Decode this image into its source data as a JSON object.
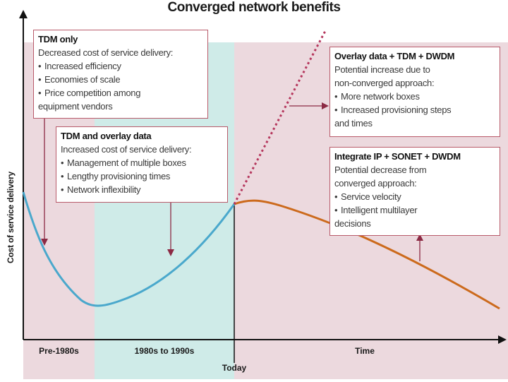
{
  "title": "Converged network benefits",
  "y_axis_label": "Cost of service delivery",
  "eras": {
    "pre": "Pre-1980s",
    "mid": "1980s to 1990s",
    "time": "Time",
    "today": "Today"
  },
  "boxes": {
    "tdm_only": {
      "heading": "TDM only",
      "subheading": "Decreased cost of service delivery:",
      "items": [
        "Increased efficiency",
        "Economies of scale",
        "Price competition among"
      ],
      "continuation": "equipment vendors"
    },
    "tdm_overlay": {
      "heading": "TDM and overlay data",
      "subheading": "Increased cost of service delivery:",
      "items": [
        "Management of multiple boxes",
        "Lengthy provisioning times",
        "Network inflexibility"
      ]
    },
    "overlay_dwdm": {
      "heading": "Overlay data + TDM + DWDM",
      "line1": "Potential increase due to",
      "line2": "non-converged approach:",
      "items": [
        "More network boxes",
        "Increased provisioning steps"
      ],
      "continuation": "and times"
    },
    "integrate": {
      "heading": "Integrate IP + SONET + DWDM",
      "line1": "Potential decrease from",
      "line2": "converged approach:",
      "items": [
        "Service velocity",
        "Intelligent multilayer"
      ],
      "continuation": "decisions"
    }
  },
  "colors": {
    "pink_band": "#ecd9de",
    "teal_band": "#cfebe8",
    "blue_curve": "#4aa8cc",
    "orange_curve": "#cc6a1c",
    "dotted_line": "#b5375d",
    "arrow": "#8c2a44",
    "box_border": "#b85a6a"
  }
}
